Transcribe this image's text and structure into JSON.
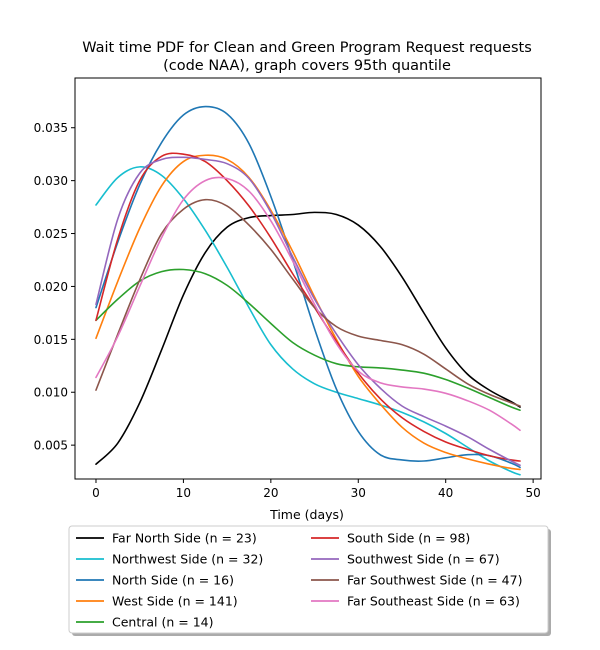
{
  "chart_data": {
    "type": "line",
    "title": "Wait time PDF for Clean and Green Program Request  requests",
    "subtitle": "(code NAA), graph covers 95th quantile",
    "xlabel": "Time (days)",
    "ylabel": "",
    "xlim": [
      -2.4,
      50.9
    ],
    "ylim": [
      0.0018,
      0.0397
    ],
    "xticks": [
      0,
      10,
      20,
      30,
      40,
      50
    ],
    "yticks": [
      0.005,
      0.01,
      0.015,
      0.02,
      0.025,
      0.03,
      0.035
    ],
    "ytick_labels": [
      "0.005",
      "0.010",
      "0.015",
      "0.020",
      "0.025",
      "0.030",
      "0.035"
    ],
    "grid": false,
    "legend_position": "bottom (below plot, two columns)",
    "x": [
      0,
      2.5,
      5,
      7.5,
      10,
      12.5,
      15,
      17.5,
      20,
      22.5,
      25,
      27.5,
      30,
      32.5,
      35,
      37.5,
      40,
      42.5,
      45,
      47.5,
      48.5
    ],
    "series": [
      {
        "name": "Far North Side (n = 23)",
        "color": "#000000",
        "values": [
          0.0032,
          0.0052,
          0.009,
          0.014,
          0.0192,
          0.0232,
          0.0256,
          0.0265,
          0.0267,
          0.0268,
          0.027,
          0.0268,
          0.0258,
          0.0238,
          0.0209,
          0.0175,
          0.0142,
          0.0117,
          0.0102,
          0.0091,
          0.0086
        ]
      },
      {
        "name": "Northwest Side (n = 32)",
        "color": "#17becf",
        "values": [
          0.0277,
          0.0303,
          0.0313,
          0.0305,
          0.0283,
          0.0253,
          0.0218,
          0.018,
          0.0145,
          0.0122,
          0.0108,
          0.01,
          0.0094,
          0.0088,
          0.0081,
          0.0072,
          0.0061,
          0.0048,
          0.0035,
          0.0025,
          0.0022
        ]
      },
      {
        "name": "North Side (n = 16)",
        "color": "#1f77b4",
        "values": [
          0.018,
          0.0242,
          0.0296,
          0.0336,
          0.0362,
          0.037,
          0.0363,
          0.0335,
          0.0285,
          0.0225,
          0.016,
          0.0103,
          0.0063,
          0.0041,
          0.0036,
          0.0035,
          0.0038,
          0.0041,
          0.004,
          0.0033,
          0.0029
        ]
      },
      {
        "name": "West Side (n = 141)",
        "color": "#ff7f0e",
        "values": [
          0.0151,
          0.0205,
          0.0255,
          0.0295,
          0.0318,
          0.0324,
          0.032,
          0.0303,
          0.0272,
          0.0233,
          0.019,
          0.015,
          0.0115,
          0.0089,
          0.0067,
          0.0052,
          0.0043,
          0.0037,
          0.0032,
          0.0028,
          0.0027
        ]
      },
      {
        "name": "Central (n = 14)",
        "color": "#2ca02c",
        "values": [
          0.0168,
          0.0188,
          0.0205,
          0.0214,
          0.0216,
          0.0212,
          0.0201,
          0.0184,
          0.0165,
          0.0147,
          0.0135,
          0.0127,
          0.0124,
          0.0123,
          0.0121,
          0.0118,
          0.0112,
          0.0104,
          0.0095,
          0.0086,
          0.0083
        ]
      },
      {
        "name": "South Side (n = 98)",
        "color": "#d62728",
        "values": [
          0.0168,
          0.0245,
          0.03,
          0.0323,
          0.0325,
          0.0318,
          0.03,
          0.0276,
          0.0246,
          0.0212,
          0.018,
          0.0148,
          0.0118,
          0.0094,
          0.0076,
          0.0063,
          0.0053,
          0.0046,
          0.004,
          0.0036,
          0.0035
        ]
      },
      {
        "name": "Southwest Side (n = 67)",
        "color": "#9467bd",
        "values": [
          0.0183,
          0.0264,
          0.0307,
          0.032,
          0.0322,
          0.032,
          0.0316,
          0.0302,
          0.027,
          0.0228,
          0.0188,
          0.0155,
          0.0126,
          0.0104,
          0.0087,
          0.0077,
          0.0068,
          0.0058,
          0.0046,
          0.0035,
          0.0031
        ]
      },
      {
        "name": "Far Southwest Side (n = 47)",
        "color": "#8c564b",
        "values": [
          0.0102,
          0.0155,
          0.0206,
          0.025,
          0.0273,
          0.0282,
          0.0276,
          0.0258,
          0.0235,
          0.0207,
          0.018,
          0.0162,
          0.0153,
          0.0149,
          0.0145,
          0.0136,
          0.0122,
          0.0108,
          0.0098,
          0.009,
          0.0087
        ]
      },
      {
        "name": "Far Southeast Side (n = 63)",
        "color": "#e377c2",
        "values": [
          0.0114,
          0.0153,
          0.02,
          0.0246,
          0.0282,
          0.03,
          0.0302,
          0.029,
          0.0262,
          0.0224,
          0.0183,
          0.0146,
          0.012,
          0.0109,
          0.0105,
          0.0103,
          0.0099,
          0.0092,
          0.0083,
          0.007,
          0.0064
        ]
      }
    ]
  }
}
